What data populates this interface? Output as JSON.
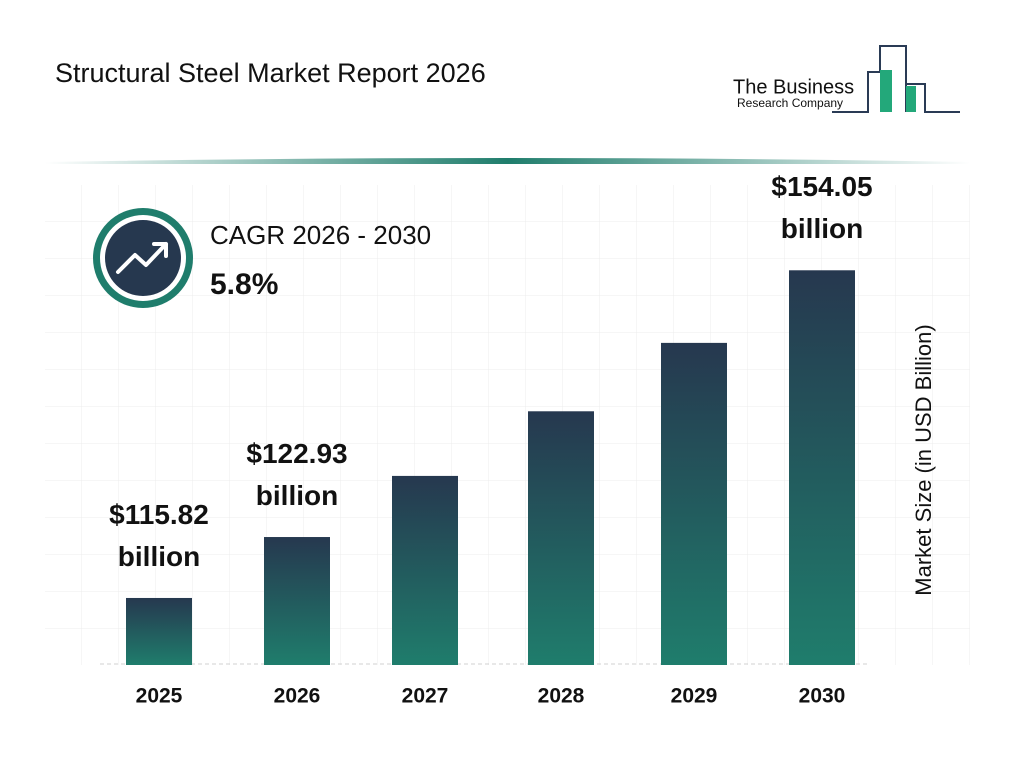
{
  "chart_data": {
    "type": "bar",
    "title": "Structural Steel Market Report 2026",
    "logo": {
      "line1": "The Business",
      "line2": "Research Company"
    },
    "cagr": {
      "label": "CAGR 2026 - 2030",
      "value": "5.8%"
    },
    "y_axis_label": "Market Size (in USD Billion)",
    "categories": [
      "2025",
      "2026",
      "2027",
      "2028",
      "2029",
      "2030"
    ],
    "values": [
      115.82,
      122.93,
      130.06,
      137.6,
      145.58,
      154.05
    ],
    "value_labels": [
      "$115.82 billion",
      "$122.93 billion",
      null,
      null,
      null,
      "$154.05 billion"
    ],
    "gradient": [
      "#26384f",
      "#1f7d6c"
    ],
    "ylim": [
      108,
      164
    ]
  }
}
